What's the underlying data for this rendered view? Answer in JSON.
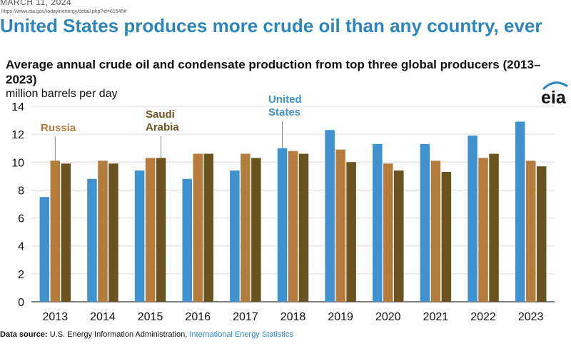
{
  "header": {
    "date": "MARCH 11, 2024",
    "url": "https://www.eia.gov/todayinenergy/detail.php?id=61545#",
    "headline": "United States produces more crude oil than any country, ever"
  },
  "logo": {
    "text": "eia"
  },
  "source": {
    "label": "Data source:",
    "agency": "U.S. Energy Information Administration,",
    "link": "International Energy Statistics"
  },
  "colors": {
    "united_states": "#3d92cf",
    "russia": "#b57b3c",
    "saudi_arabia": "#6b5320",
    "accent": "#2c86bd"
  },
  "chart_data": {
    "type": "bar",
    "title": "Average annual crude oil and condensate production from top three global producers (2013–2023)",
    "ylabel": "million barrels per day",
    "xlabel": "",
    "ylim": [
      0,
      14
    ],
    "yticks": [
      0,
      2,
      4,
      6,
      8,
      10,
      12,
      14
    ],
    "grid": true,
    "legend": "inline annotations",
    "categories": [
      "2013",
      "2014",
      "2015",
      "2016",
      "2017",
      "2018",
      "2019",
      "2020",
      "2021",
      "2022",
      "2023"
    ],
    "series": [
      {
        "name": "United States",
        "values": [
          7.5,
          8.8,
          9.4,
          8.8,
          9.4,
          11.0,
          12.3,
          11.3,
          11.3,
          11.9,
          12.9
        ]
      },
      {
        "name": "Russia",
        "values": [
          10.1,
          10.1,
          10.3,
          10.6,
          10.6,
          10.8,
          10.9,
          9.9,
          10.1,
          10.3,
          10.1
        ]
      },
      {
        "name": "Saudi Arabia",
        "values": [
          9.9,
          9.9,
          10.3,
          10.6,
          10.3,
          10.6,
          10.0,
          9.4,
          9.3,
          10.6,
          9.7
        ]
      }
    ],
    "annotations": [
      {
        "lines": [
          "Russia"
        ]
      },
      {
        "lines": [
          "Saudi",
          "Arabia"
        ]
      },
      {
        "lines": [
          "United",
          "States"
        ]
      }
    ]
  }
}
